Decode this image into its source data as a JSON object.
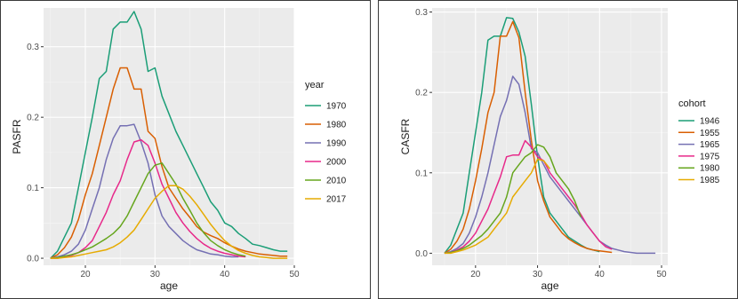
{
  "chart_data": [
    {
      "type": "line",
      "xlabel": "age",
      "ylabel": "PASFR",
      "xlim": [
        14,
        50
      ],
      "ylim": [
        -0.01,
        0.355
      ],
      "x_ticks": [
        20,
        30,
        40,
        50
      ],
      "y_ticks": [
        0.0,
        0.1,
        0.2,
        0.3
      ],
      "y_tick_labels": [
        "0.0",
        "0.1",
        "0.2",
        "0.3"
      ],
      "grid": true,
      "legend_title": "year",
      "legend_position": "right",
      "series": [
        {
          "name": "1970",
          "color": "#1b9e77",
          "x": [
            15,
            16,
            17,
            18,
            19,
            20,
            21,
            22,
            23,
            24,
            25,
            26,
            27,
            28,
            29,
            30,
            31,
            32,
            33,
            34,
            35,
            36,
            37,
            38,
            39,
            40,
            41,
            42,
            43,
            44,
            45,
            46,
            47,
            48,
            49
          ],
          "y": [
            0.0,
            0.01,
            0.03,
            0.05,
            0.1,
            0.15,
            0.2,
            0.255,
            0.265,
            0.325,
            0.335,
            0.335,
            0.35,
            0.325,
            0.265,
            0.27,
            0.23,
            0.205,
            0.18,
            0.16,
            0.14,
            0.12,
            0.1,
            0.08,
            0.068,
            0.05,
            0.045,
            0.035,
            0.028,
            0.02,
            0.018,
            0.015,
            0.012,
            0.01,
            0.01
          ]
        },
        {
          "name": "1980",
          "color": "#d95f02",
          "x": [
            15,
            16,
            17,
            18,
            19,
            20,
            21,
            22,
            23,
            24,
            25,
            26,
            27,
            28,
            29,
            30,
            31,
            32,
            33,
            34,
            35,
            36,
            37,
            38,
            39,
            40,
            41,
            42,
            43,
            44,
            45,
            46,
            47,
            48,
            49
          ],
          "y": [
            0.0,
            0.005,
            0.015,
            0.03,
            0.055,
            0.09,
            0.12,
            0.16,
            0.2,
            0.24,
            0.27,
            0.27,
            0.24,
            0.24,
            0.18,
            0.17,
            0.13,
            0.1,
            0.085,
            0.07,
            0.058,
            0.045,
            0.037,
            0.032,
            0.028,
            0.022,
            0.017,
            0.013,
            0.01,
            0.008,
            0.006,
            0.005,
            0.004,
            0.003,
            0.003
          ]
        },
        {
          "name": "1990",
          "color": "#7570b3",
          "x": [
            15,
            16,
            17,
            18,
            19,
            20,
            21,
            22,
            23,
            24,
            25,
            26,
            27,
            28,
            29,
            30,
            31,
            32,
            33,
            34,
            35,
            36,
            37,
            38,
            39,
            40,
            41,
            42
          ],
          "y": [
            0.0,
            0.002,
            0.005,
            0.01,
            0.02,
            0.04,
            0.07,
            0.1,
            0.14,
            0.17,
            0.188,
            0.188,
            0.19,
            0.165,
            0.135,
            0.09,
            0.06,
            0.045,
            0.035,
            0.025,
            0.018,
            0.012,
            0.009,
            0.006,
            0.005,
            0.003,
            0.002,
            0.002
          ]
        },
        {
          "name": "2000",
          "color": "#e7298a",
          "x": [
            15,
            16,
            17,
            18,
            19,
            20,
            21,
            22,
            23,
            24,
            25,
            26,
            27,
            28,
            29,
            30,
            31,
            32,
            33,
            34,
            35,
            36,
            37,
            38,
            39,
            40,
            41,
            42,
            43
          ],
          "y": [
            0.0,
            0.0,
            0.002,
            0.004,
            0.008,
            0.015,
            0.025,
            0.045,
            0.065,
            0.09,
            0.11,
            0.14,
            0.165,
            0.168,
            0.16,
            0.135,
            0.105,
            0.085,
            0.065,
            0.05,
            0.038,
            0.028,
            0.02,
            0.014,
            0.01,
            0.007,
            0.005,
            0.003,
            0.002
          ]
        },
        {
          "name": "2010",
          "color": "#66a61e",
          "x": [
            15,
            16,
            17,
            18,
            19,
            20,
            21,
            22,
            23,
            24,
            25,
            26,
            27,
            28,
            29,
            30,
            31,
            32,
            33,
            34,
            35,
            36,
            37,
            38,
            39,
            40,
            41,
            42,
            43
          ],
          "y": [
            0.0,
            0.001,
            0.003,
            0.005,
            0.008,
            0.012,
            0.016,
            0.022,
            0.028,
            0.035,
            0.045,
            0.06,
            0.08,
            0.1,
            0.12,
            0.132,
            0.135,
            0.12,
            0.105,
            0.085,
            0.068,
            0.05,
            0.036,
            0.025,
            0.018,
            0.012,
            0.008,
            0.005,
            0.003
          ]
        },
        {
          "name": "2017",
          "color": "#e6ab02",
          "x": [
            15,
            16,
            17,
            18,
            19,
            20,
            21,
            22,
            23,
            24,
            25,
            26,
            27,
            28,
            29,
            30,
            31,
            32,
            33,
            34,
            35,
            36,
            37,
            38,
            39,
            40,
            41,
            42,
            43,
            44,
            45,
            46,
            47,
            48,
            49
          ],
          "y": [
            0.0,
            0.0,
            0.001,
            0.002,
            0.004,
            0.006,
            0.008,
            0.01,
            0.012,
            0.016,
            0.022,
            0.03,
            0.04,
            0.055,
            0.07,
            0.085,
            0.095,
            0.103,
            0.103,
            0.098,
            0.088,
            0.076,
            0.062,
            0.048,
            0.036,
            0.025,
            0.017,
            0.011,
            0.007,
            0.004,
            0.002,
            0.001,
            0.0,
            0.0,
            0.0
          ]
        }
      ]
    },
    {
      "type": "line",
      "xlabel": "age",
      "ylabel": "CASFR",
      "xlim": [
        13,
        51
      ],
      "ylim": [
        -0.015,
        0.305
      ],
      "x_ticks": [
        20,
        30,
        40,
        50
      ],
      "y_ticks": [
        0.0,
        0.1,
        0.2,
        0.3
      ],
      "y_tick_labels": [
        "0.0",
        "0.1",
        "0.2",
        "0.3"
      ],
      "grid": true,
      "legend_title": "cohort",
      "legend_position": "right",
      "series": [
        {
          "name": "1946",
          "color": "#1b9e77",
          "x": [
            15,
            16,
            17,
            18,
            19,
            20,
            21,
            22,
            23,
            24,
            25,
            26,
            27,
            28,
            29,
            30,
            31,
            32,
            33,
            34,
            35,
            36,
            37,
            38,
            39,
            40
          ],
          "y": [
            0.0,
            0.01,
            0.03,
            0.05,
            0.1,
            0.15,
            0.2,
            0.265,
            0.27,
            0.27,
            0.293,
            0.292,
            0.275,
            0.245,
            0.185,
            0.12,
            0.07,
            0.05,
            0.04,
            0.03,
            0.02,
            0.015,
            0.01,
            0.006,
            0.004,
            0.002
          ]
        },
        {
          "name": "1955",
          "color": "#d95f02",
          "x": [
            15,
            16,
            17,
            18,
            19,
            20,
            21,
            22,
            23,
            24,
            25,
            26,
            27,
            28,
            29,
            30,
            31,
            32,
            33,
            34,
            35,
            36,
            37,
            38,
            39,
            40,
            41,
            42
          ],
          "y": [
            0.0,
            0.005,
            0.015,
            0.03,
            0.055,
            0.09,
            0.13,
            0.175,
            0.2,
            0.27,
            0.27,
            0.288,
            0.268,
            0.2,
            0.14,
            0.09,
            0.065,
            0.045,
            0.035,
            0.025,
            0.018,
            0.013,
            0.009,
            0.006,
            0.004,
            0.003,
            0.002,
            0.001
          ]
        },
        {
          "name": "1965",
          "color": "#7570b3",
          "x": [
            15,
            16,
            17,
            18,
            19,
            20,
            21,
            22,
            23,
            24,
            25,
            26,
            27,
            28,
            29,
            30,
            31,
            32,
            33,
            34,
            35,
            36,
            37,
            38,
            39,
            40,
            41,
            42,
            43,
            44,
            45,
            46,
            47,
            48,
            49
          ],
          "y": [
            0.0,
            0.002,
            0.006,
            0.012,
            0.025,
            0.045,
            0.07,
            0.1,
            0.135,
            0.17,
            0.19,
            0.22,
            0.21,
            0.175,
            0.13,
            0.125,
            0.11,
            0.095,
            0.085,
            0.075,
            0.065,
            0.055,
            0.045,
            0.035,
            0.025,
            0.015,
            0.01,
            0.006,
            0.004,
            0.002,
            0.001,
            0.0,
            0.0,
            0.0,
            0.0
          ]
        },
        {
          "name": "1975",
          "color": "#e7298a",
          "x": [
            15,
            16,
            17,
            18,
            19,
            20,
            21,
            22,
            23,
            24,
            25,
            26,
            27,
            28,
            29,
            30,
            31,
            32,
            33,
            34,
            35,
            36,
            37,
            38,
            39,
            40,
            41,
            42
          ],
          "y": [
            0.0,
            0.001,
            0.004,
            0.008,
            0.015,
            0.025,
            0.04,
            0.055,
            0.075,
            0.095,
            0.12,
            0.122,
            0.122,
            0.14,
            0.132,
            0.12,
            0.115,
            0.1,
            0.09,
            0.08,
            0.07,
            0.06,
            0.048,
            0.035,
            0.025,
            0.015,
            0.008,
            0.005
          ]
        },
        {
          "name": "1980",
          "color": "#66a61e",
          "x": [
            15,
            16,
            17,
            18,
            19,
            20,
            21,
            22,
            23,
            24,
            25,
            26,
            27,
            28,
            29,
            30,
            31,
            32,
            33,
            34,
            35,
            36,
            37
          ],
          "y": [
            0.0,
            0.001,
            0.003,
            0.006,
            0.01,
            0.016,
            0.022,
            0.03,
            0.04,
            0.05,
            0.07,
            0.1,
            0.11,
            0.12,
            0.125,
            0.135,
            0.132,
            0.12,
            0.1,
            0.09,
            0.08,
            0.065,
            0.045
          ]
        },
        {
          "name": "1985",
          "color": "#e6ab02",
          "x": [
            15,
            16,
            17,
            18,
            19,
            20,
            21,
            22,
            23,
            24,
            25,
            26,
            27,
            28,
            29,
            30,
            31,
            32
          ],
          "y": [
            0.0,
            0.0,
            0.002,
            0.004,
            0.007,
            0.01,
            0.015,
            0.02,
            0.03,
            0.04,
            0.05,
            0.07,
            0.08,
            0.09,
            0.1,
            0.117,
            0.115,
            0.105
          ]
        }
      ]
    }
  ]
}
